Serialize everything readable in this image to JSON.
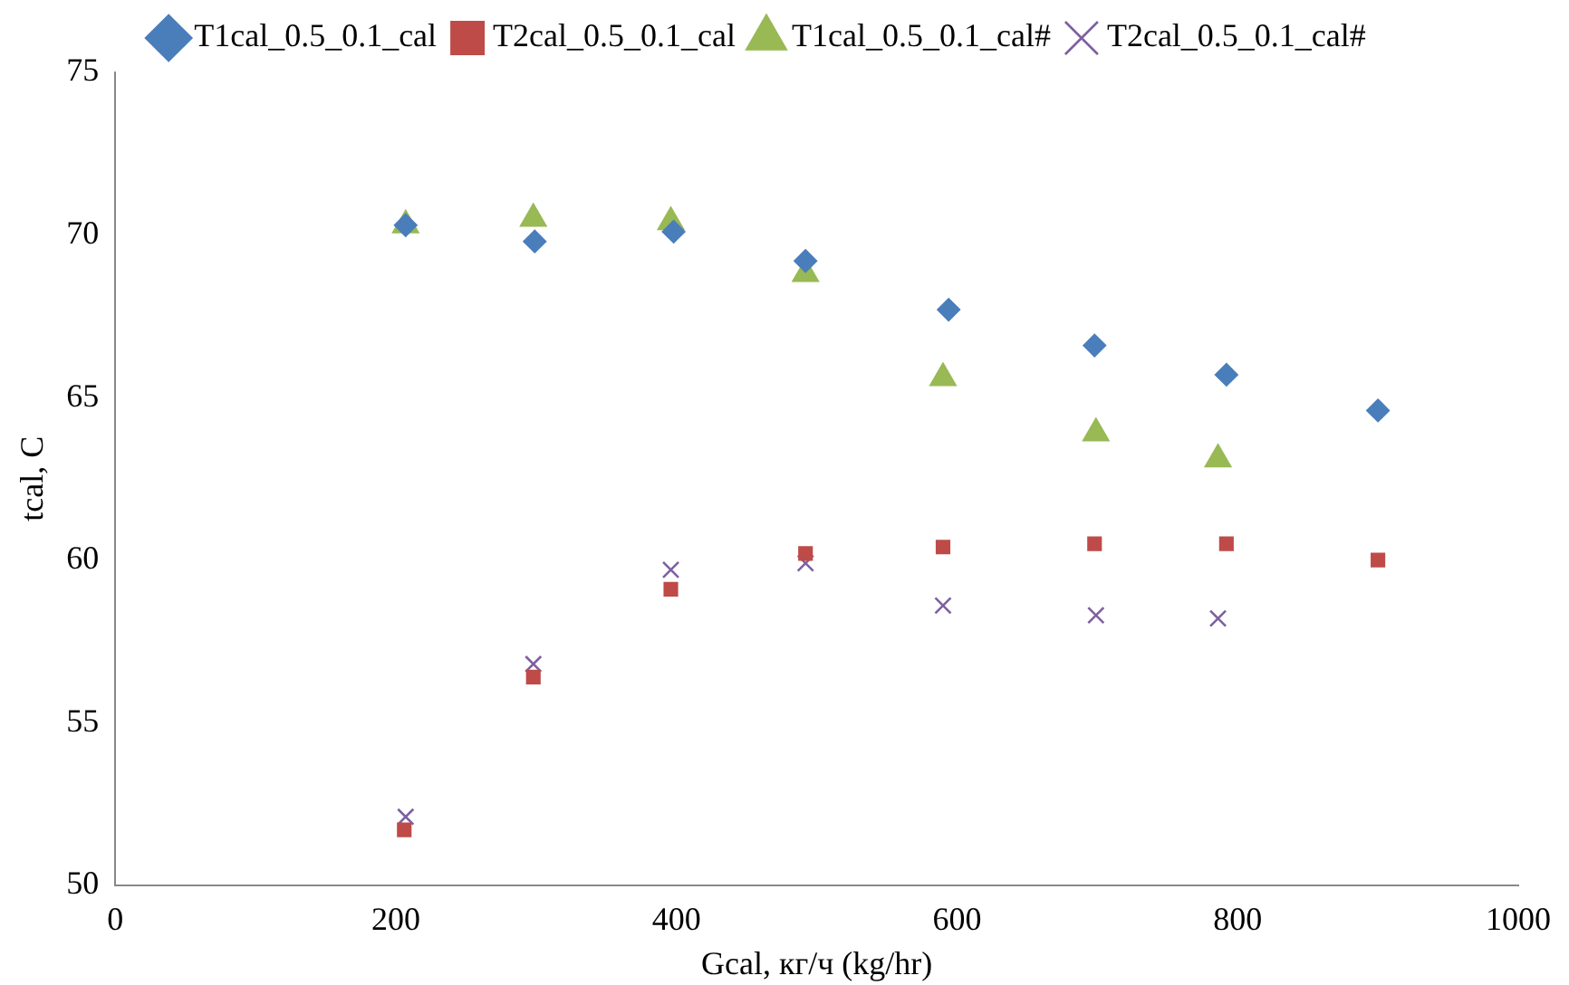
{
  "chart_data": {
    "type": "scatter",
    "xlabel": "Gcal, кг/ч (kg/hr)",
    "ylabel": "tcal, C",
    "xlim": [
      0,
      1000
    ],
    "xticks": [
      0,
      200,
      400,
      600,
      800,
      1000
    ],
    "ylim": [
      50,
      75
    ],
    "yticks": [
      50,
      55,
      60,
      65,
      70,
      75
    ],
    "grid": false,
    "legend": "top",
    "series": [
      {
        "name": "T1cal_0.5_0.1_cal",
        "color": "#4a7ebb",
        "marker": "diamond",
        "x": [
          207,
          299,
          398,
          492,
          594,
          698,
          792,
          900
        ],
        "values": [
          70.3,
          69.8,
          70.1,
          69.2,
          67.7,
          66.6,
          65.7,
          64.6
        ]
      },
      {
        "name": "T2cal_0.5_0.1_cal",
        "color": "#be4b48",
        "marker": "square",
        "x": [
          206,
          298,
          396,
          492,
          590,
          698,
          792,
          900
        ],
        "values": [
          51.7,
          56.4,
          59.1,
          60.2,
          60.4,
          60.5,
          60.5,
          60.0
        ]
      },
      {
        "name": "T1cal_0.5_0.1_cal#",
        "color": "#98b954",
        "marker": "triangle",
        "x": [
          207,
          298,
          396,
          492,
          590,
          699,
          786
        ],
        "values": [
          70.3,
          70.5,
          70.4,
          68.8,
          65.6,
          63.9,
          63.1
        ]
      },
      {
        "name": "T2cal_0.5_0.1_cal#",
        "color": "#7d60a0",
        "marker": "cross",
        "x": [
          207,
          298,
          396,
          492,
          590,
          699,
          786
        ],
        "values": [
          52.1,
          56.8,
          59.7,
          59.9,
          58.6,
          58.3,
          58.2
        ]
      }
    ]
  }
}
